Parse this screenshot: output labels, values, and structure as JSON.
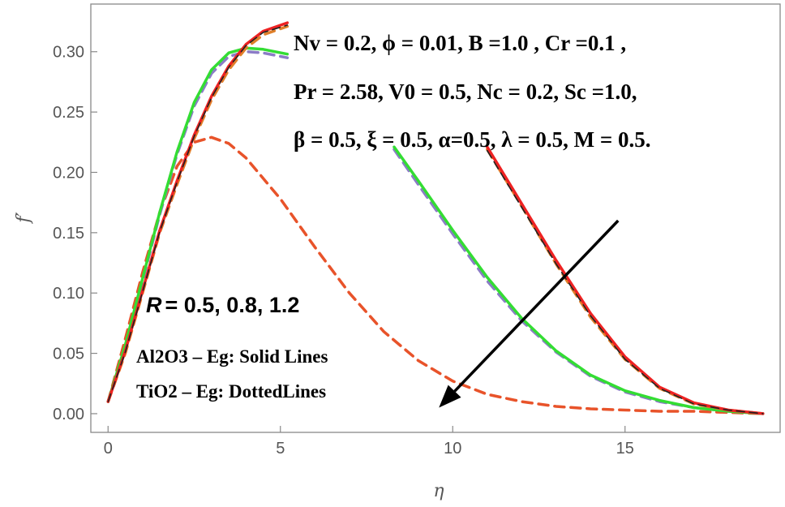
{
  "chart_data": {
    "type": "line",
    "xlabel": "η",
    "ylabel": "f′",
    "xlim": [
      -0.5,
      19.5
    ],
    "ylim": [
      -0.0155,
      0.3395
    ],
    "xticks": [
      0,
      5,
      10,
      15
    ],
    "yticks": [
      0.0,
      0.05,
      0.1,
      0.15,
      0.2,
      0.25,
      0.3
    ],
    "xtick_labels": [
      "0",
      "5",
      "10",
      "15"
    ],
    "ytick_labels": [
      "0.00",
      "0.05",
      "0.10",
      "0.15",
      "0.20",
      "0.25",
      "0.30"
    ],
    "series": [
      {
        "name": "R = 1.2 (TiO2, dotted)",
        "color": "#e8532a",
        "style": "dashed",
        "x": [
          0,
          0.5,
          1,
          1.5,
          2,
          2.5,
          3,
          3.5,
          4,
          5,
          6,
          7,
          8,
          9,
          10,
          11,
          12,
          13,
          14,
          15,
          16,
          17,
          18,
          19
        ],
        "y": [
          0.01,
          0.062,
          0.117,
          0.167,
          0.205,
          0.225,
          0.229,
          0.224,
          0.212,
          0.178,
          0.138,
          0.1,
          0.068,
          0.044,
          0.027,
          0.016,
          0.01,
          0.006,
          0.004,
          0.003,
          0.002,
          0.002,
          0.001,
          0.0
        ]
      },
      {
        "name": "R = 0.8 (TiO2, dotted)",
        "color": "#8b7cc6",
        "style": "dashed",
        "x": [
          0,
          0.5,
          1,
          1.5,
          2,
          2.5,
          3,
          3.5,
          4,
          4.5,
          5.2,
          8.3,
          9,
          10,
          11,
          12,
          13,
          14,
          15,
          16,
          17,
          18,
          19
        ],
        "y": [
          0.01,
          0.055,
          0.11,
          0.165,
          0.215,
          0.255,
          0.282,
          0.296,
          0.3,
          0.299,
          0.295,
          0.219,
          0.19,
          0.149,
          0.11,
          0.077,
          0.051,
          0.031,
          0.018,
          0.01,
          0.005,
          0.002,
          0.0
        ]
      },
      {
        "name": "R = 0.8 (Al2O3, solid)",
        "color": "#33dd33",
        "style": "solid",
        "x": [
          0,
          0.5,
          1,
          1.5,
          2,
          2.5,
          3,
          3.5,
          4,
          4.5,
          5.2,
          8.3,
          9,
          10,
          11,
          12,
          13,
          14,
          15,
          16,
          17,
          18,
          19
        ],
        "y": [
          0.01,
          0.057,
          0.112,
          0.167,
          0.217,
          0.258,
          0.285,
          0.299,
          0.303,
          0.302,
          0.298,
          0.221,
          0.193,
          0.152,
          0.113,
          0.079,
          0.052,
          0.032,
          0.019,
          0.011,
          0.005,
          0.002,
          0.0
        ]
      },
      {
        "name": "R = 0.5 (TiO2, dotted)",
        "color": "#e0802a",
        "style": "dashed",
        "x": [
          0,
          0.5,
          1,
          1.5,
          2,
          2.5,
          3,
          3.5,
          4,
          4.5,
          5.2,
          11,
          12,
          13,
          14,
          15,
          16,
          17,
          18,
          19
        ],
        "y": [
          0.01,
          0.05,
          0.1,
          0.15,
          0.19,
          0.228,
          0.26,
          0.285,
          0.303,
          0.314,
          0.321,
          0.219,
          0.172,
          0.124,
          0.08,
          0.045,
          0.021,
          0.008,
          0.003,
          0.0
        ]
      },
      {
        "name": "R = 0.5 (Al2O3, solid)",
        "color": "#ee2222",
        "style": "solid",
        "x": [
          0,
          0.5,
          1,
          1.5,
          2,
          2.5,
          3,
          3.5,
          4,
          4.5,
          5.2,
          11,
          12,
          13,
          14,
          15,
          16,
          17,
          18,
          19
        ],
        "y": [
          0.01,
          0.052,
          0.102,
          0.152,
          0.193,
          0.231,
          0.263,
          0.288,
          0.306,
          0.317,
          0.324,
          0.221,
          0.174,
          0.127,
          0.083,
          0.047,
          0.022,
          0.009,
          0.003,
          0.0
        ]
      },
      {
        "name": "R = 0.5 (black)",
        "color": "#222222",
        "style": "solid",
        "x": [
          0,
          0.5,
          1,
          1.5,
          2,
          2.5,
          3,
          3.5,
          4,
          4.5,
          5.2,
          11,
          12,
          13,
          14,
          15,
          16,
          17,
          18,
          19
        ],
        "y": [
          0.01,
          0.051,
          0.101,
          0.151,
          0.192,
          0.23,
          0.262,
          0.287,
          0.305,
          0.316,
          0.322,
          0.218,
          0.171,
          0.124,
          0.081,
          0.045,
          0.021,
          0.008,
          0.003,
          0.0
        ]
      }
    ],
    "annotations": {
      "line1": "Nv = 0.2, ϕ = 0.01, B =1.0 , Cr =0.1 ,",
      "line2": "Pr = 2.58, V0 = 0.5, Nc = 0.2, Sc =1.0,",
      "line3": "β = 0.5, ξ = 0.5, α=0.5, λ = 0.5, M = 0.5.",
      "r_label": "R",
      "r_values": "= 0.5, 0.8, 1.2",
      "legend1": "Al2O3 – Eg: Solid Lines",
      "legend2": "TiO2 – Eg: DottedLines"
    },
    "arrow": {
      "from": [
        14.8,
        0.16
      ],
      "to": [
        9.6,
        0.005
      ]
    }
  }
}
